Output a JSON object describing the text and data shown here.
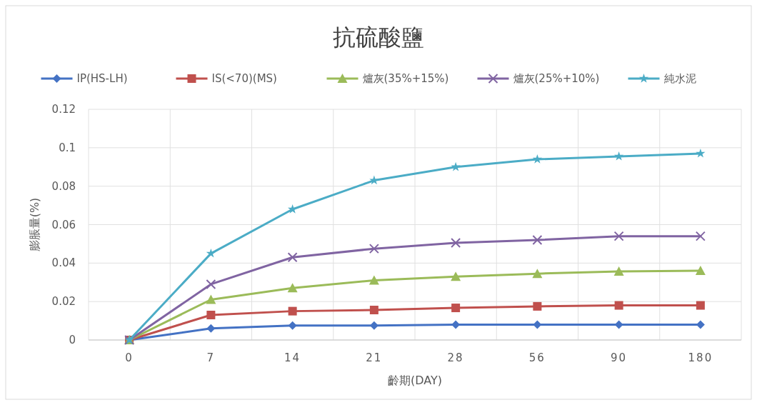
{
  "chart_data": {
    "type": "line",
    "title": "抗硫酸鹽",
    "xlabel": "齡期(DAY)",
    "ylabel": "膨脹量(%)",
    "categories": [
      "0",
      "7",
      "14",
      "21",
      "28",
      "56",
      "90",
      "180"
    ],
    "ylim": [
      0,
      0.12
    ],
    "yticks": [
      0,
      0.02,
      0.04,
      0.06,
      0.08,
      0.1,
      0.12
    ],
    "grid": true,
    "legend": "top",
    "series": [
      {
        "name": "IP(HS-LH)",
        "color": "#4472c4",
        "marker": "diamond",
        "values": [
          0,
          0.006,
          0.0075,
          0.0075,
          0.008,
          0.008,
          0.008,
          0.008
        ]
      },
      {
        "name": "IS(<70)(MS)",
        "color": "#c0504d",
        "marker": "square",
        "values": [
          0,
          0.013,
          0.015,
          0.0156,
          0.0167,
          0.0175,
          0.018,
          0.018
        ]
      },
      {
        "name": "爐灰(35%+15%)",
        "color": "#9bbb59",
        "marker": "triangle",
        "values": [
          0,
          0.021,
          0.027,
          0.031,
          0.033,
          0.0345,
          0.0357,
          0.036
        ]
      },
      {
        "name": "爐灰(25%+10%)",
        "color": "#8064a2",
        "marker": "cross",
        "values": [
          0,
          0.029,
          0.043,
          0.0475,
          0.0505,
          0.052,
          0.054,
          0.054
        ]
      },
      {
        "name": "純水泥",
        "color": "#4bacc6",
        "marker": "star",
        "values": [
          0,
          0.045,
          0.068,
          0.083,
          0.09,
          0.094,
          0.0955,
          0.097
        ]
      }
    ]
  }
}
